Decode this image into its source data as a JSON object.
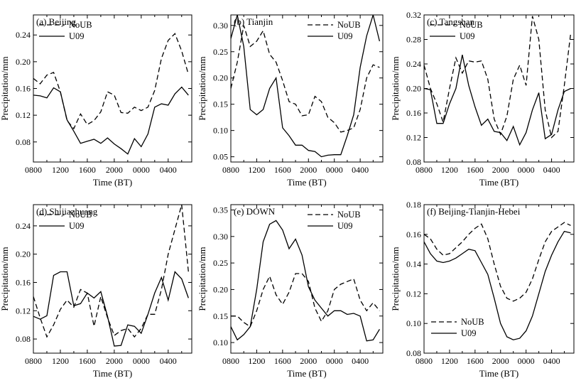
{
  "chart_data": [
    {
      "type": "line",
      "title": "(a)  Beijing",
      "xlabel": "Time (BT)",
      "ylabel": "Precipitation/mm",
      "xticks": [
        "0800",
        "1200",
        "1600",
        "2000",
        "0000",
        "0400"
      ],
      "ylim": [
        0.05,
        0.27
      ],
      "yticks": [
        "0.08",
        "0.12",
        "0.16",
        "0.20",
        "0.24"
      ],
      "yvalues": [
        0.08,
        0.12,
        0.16,
        0.2,
        0.24
      ],
      "legend_position": "top-left",
      "series": [
        {
          "name": "NoUB",
          "style": "dashed",
          "values": [
            0.175,
            0.167,
            0.18,
            0.184,
            0.155,
            0.112,
            0.1,
            0.122,
            0.106,
            0.112,
            0.125,
            0.155,
            0.15,
            0.124,
            0.123,
            0.132,
            0.127,
            0.132,
            0.157,
            0.205,
            0.232,
            0.242,
            0.216,
            0.181
          ]
        },
        {
          "name": "U09",
          "style": "solid",
          "values": [
            0.15,
            0.149,
            0.146,
            0.161,
            0.155,
            0.113,
            0.096,
            0.078,
            0.081,
            0.084,
            0.078,
            0.086,
            0.077,
            0.07,
            0.062,
            0.085,
            0.073,
            0.092,
            0.132,
            0.137,
            0.135,
            0.152,
            0.162,
            0.15
          ]
        }
      ]
    },
    {
      "type": "line",
      "title": "(b)  Tianjin",
      "xlabel": "Time (BT)",
      "ylabel": "Precipitation/mm",
      "xticks": [
        "0800",
        "1200",
        "1600",
        "2000",
        "0000",
        "0400"
      ],
      "ylim": [
        0.04,
        0.32
      ],
      "yticks": [
        "0.05",
        "0.10",
        "0.15",
        "0.20",
        "0.25",
        "0.30"
      ],
      "yvalues": [
        0.05,
        0.1,
        0.15,
        0.2,
        0.25,
        0.3
      ],
      "legend_position": "top-right",
      "series": [
        {
          "name": "NoUB",
          "style": "dashed",
          "values": [
            0.18,
            0.23,
            0.3,
            0.26,
            0.27,
            0.29,
            0.245,
            0.23,
            0.195,
            0.155,
            0.15,
            0.128,
            0.13,
            0.165,
            0.155,
            0.125,
            0.115,
            0.097,
            0.1,
            0.105,
            0.14,
            0.2,
            0.225,
            0.22
          ]
        },
        {
          "name": "U09",
          "style": "solid",
          "values": [
            0.275,
            0.32,
            0.26,
            0.14,
            0.13,
            0.14,
            0.18,
            0.2,
            0.105,
            0.09,
            0.072,
            0.072,
            0.062,
            0.06,
            0.05,
            0.053,
            0.054,
            0.054,
            0.09,
            0.13,
            0.22,
            0.28,
            0.32,
            0.27
          ]
        }
      ]
    },
    {
      "type": "line",
      "title": "(c)  Tangshan",
      "xlabel": "Time (BT)",
      "ylabel": "Precipitation/mm",
      "xticks": [
        "0800",
        "1200",
        "1600",
        "2000",
        "0000",
        "0400"
      ],
      "ylim": [
        0.08,
        0.32
      ],
      "yticks": [
        "0.08",
        "0.12",
        "0.16",
        "0.20",
        "0.24",
        "0.28",
        "0.32"
      ],
      "yvalues": [
        0.08,
        0.12,
        0.16,
        0.2,
        0.24,
        0.28,
        0.32
      ],
      "legend_position": "top-left",
      "series": [
        {
          "name": "NoUB",
          "style": "dashed",
          "values": [
            0.238,
            0.2,
            0.175,
            0.145,
            0.2,
            0.25,
            0.225,
            0.245,
            0.243,
            0.245,
            0.215,
            0.15,
            0.125,
            0.155,
            0.215,
            0.238,
            0.205,
            0.318,
            0.28,
            0.165,
            0.12,
            0.13,
            0.205,
            0.29
          ]
        },
        {
          "name": "U09",
          "style": "solid",
          "values": [
            0.2,
            0.198,
            0.143,
            0.143,
            0.175,
            0.2,
            0.255,
            0.205,
            0.17,
            0.14,
            0.15,
            0.13,
            0.128,
            0.115,
            0.138,
            0.108,
            0.128,
            0.165,
            0.193,
            0.118,
            0.125,
            0.165,
            0.195,
            0.2
          ]
        }
      ]
    },
    {
      "type": "line",
      "title": "(d)  Shijiazhuang",
      "xlabel": "Time (BT)",
      "ylabel": "Precipitation/mm",
      "xticks": [
        "0800",
        "1200",
        "1600",
        "2000",
        "0000",
        "0400"
      ],
      "ylim": [
        0.06,
        0.27
      ],
      "yticks": [
        "0.08",
        "0.12",
        "0.16",
        "0.20",
        "0.24"
      ],
      "yvalues": [
        0.08,
        0.12,
        0.16,
        0.2,
        0.24
      ],
      "legend_position": "top-left",
      "series": [
        {
          "name": "NoUB",
          "style": "dashed",
          "values": [
            0.14,
            0.11,
            0.083,
            0.1,
            0.122,
            0.135,
            0.125,
            0.15,
            0.145,
            0.098,
            0.14,
            0.11,
            0.085,
            0.092,
            0.095,
            0.083,
            0.095,
            0.115,
            0.115,
            0.15,
            0.2,
            0.235,
            0.27,
            0.175
          ]
        },
        {
          "name": "U09",
          "style": "solid",
          "values": [
            0.112,
            0.108,
            0.113,
            0.17,
            0.175,
            0.175,
            0.127,
            0.13,
            0.145,
            0.138,
            0.147,
            0.112,
            0.07,
            0.071,
            0.1,
            0.098,
            0.088,
            0.115,
            0.145,
            0.167,
            0.135,
            0.175,
            0.165,
            0.138
          ]
        }
      ]
    },
    {
      "type": "line",
      "title": "(e)  DOWN",
      "xlabel": "Time (BT)",
      "ylabel": "Precipitation/mm",
      "xticks": [
        "0800",
        "1200",
        "1600",
        "2000",
        "0000",
        "0400"
      ],
      "ylim": [
        0.08,
        0.36
      ],
      "yticks": [
        "0.10",
        "0.15",
        "0.20",
        "0.25",
        "0.30",
        "0.35"
      ],
      "yvalues": [
        0.1,
        0.15,
        0.2,
        0.25,
        0.3,
        0.35
      ],
      "legend_position": "top-right",
      "series": [
        {
          "name": "NoUB",
          "style": "dashed",
          "values": [
            0.15,
            0.15,
            0.138,
            0.13,
            0.16,
            0.2,
            0.225,
            0.19,
            0.172,
            0.195,
            0.23,
            0.23,
            0.215,
            0.165,
            0.14,
            0.16,
            0.2,
            0.21,
            0.215,
            0.22,
            0.18,
            0.16,
            0.175,
            0.16
          ]
        },
        {
          "name": "U09",
          "style": "solid",
          "values": [
            0.13,
            0.105,
            0.115,
            0.13,
            0.2,
            0.29,
            0.323,
            0.33,
            0.312,
            0.277,
            0.295,
            0.265,
            0.205,
            0.18,
            0.165,
            0.15,
            0.16,
            0.16,
            0.153,
            0.155,
            0.15,
            0.103,
            0.105,
            0.125
          ]
        }
      ]
    },
    {
      "type": "line",
      "title": "(f)  Beijing-Tianjin-Hebei",
      "xlabel": "Time (BT)",
      "ylabel": "Precipitation/mm",
      "xticks": [
        "0800",
        "1200",
        "1600",
        "2000",
        "0000",
        "0400"
      ],
      "ylim": [
        0.08,
        0.18
      ],
      "yticks": [
        "0.08",
        "0.10",
        "0.12",
        "0.14",
        "0.16",
        "0.18"
      ],
      "yvalues": [
        0.08,
        0.1,
        0.12,
        0.14,
        0.16,
        0.18
      ],
      "legend_position": "bottom-left",
      "series": [
        {
          "name": "NoUB",
          "style": "dashed",
          "values": [
            0.16,
            0.157,
            0.15,
            0.146,
            0.147,
            0.151,
            0.155,
            0.16,
            0.164,
            0.167,
            0.157,
            0.14,
            0.125,
            0.117,
            0.115,
            0.117,
            0.121,
            0.13,
            0.143,
            0.155,
            0.162,
            0.165,
            0.168,
            0.166
          ]
        },
        {
          "name": "U09",
          "style": "solid",
          "values": [
            0.155,
            0.147,
            0.142,
            0.141,
            0.142,
            0.144,
            0.147,
            0.15,
            0.149,
            0.141,
            0.133,
            0.117,
            0.1,
            0.091,
            0.089,
            0.09,
            0.095,
            0.105,
            0.12,
            0.135,
            0.146,
            0.155,
            0.162,
            0.161
          ]
        }
      ]
    }
  ]
}
